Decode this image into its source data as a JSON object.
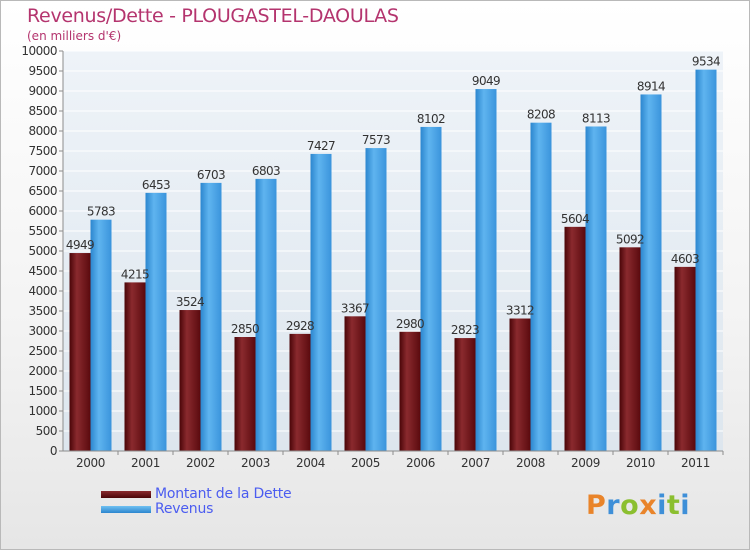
{
  "title": "Revenus/Dette - PLOUGASTEL-DAOULAS",
  "subtitle": "(en milliers d'€)",
  "brand": {
    "name": "Proxiti",
    "letter_colors": [
      "#e9842a",
      "#3e8fd8",
      "#8bbf2f",
      "#e9842a",
      "#3e8fd8",
      "#8bbf2f",
      "#3e8fd8"
    ]
  },
  "legend": [
    {
      "label": "Montant de la Dette",
      "color": "#6b0f14"
    },
    {
      "label": "Revenus",
      "color": "#4aa2e6"
    }
  ],
  "chart_data": {
    "type": "bar",
    "title": "Revenus/Dette - PLOUGASTEL-DAOULAS",
    "subtitle": "(en milliers d'€)",
    "xlabel": "",
    "ylabel": "",
    "ylim": [
      0,
      10000
    ],
    "ytick_step": 500,
    "grid": true,
    "categories": [
      "2000",
      "2001",
      "2002",
      "2003",
      "2004",
      "2005",
      "2006",
      "2007",
      "2008",
      "2009",
      "2010",
      "2011"
    ],
    "series": [
      {
        "name": "Montant de la Dette",
        "color": "#6b0f14",
        "values": [
          4949,
          4215,
          3524,
          2850,
          2928,
          3367,
          2980,
          2823,
          3312,
          5604,
          5092,
          4603
        ]
      },
      {
        "name": "Revenus",
        "color": "#4aa2e6",
        "values": [
          5783,
          6453,
          6703,
          6803,
          7427,
          7573,
          8102,
          9049,
          8208,
          8113,
          8914,
          9534
        ]
      }
    ]
  }
}
